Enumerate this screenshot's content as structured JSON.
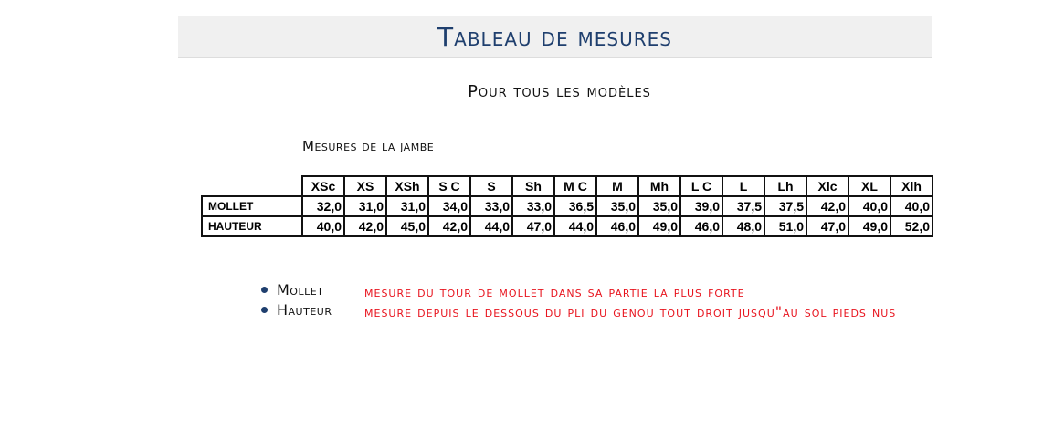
{
  "header": {
    "title": "Tableau de mesures"
  },
  "subtitle": "Pour tous les modèles",
  "section": "Mesures de la jambe",
  "table": {
    "sizes": [
      "XSc",
      "XS",
      "XSh",
      "S C",
      "S",
      "Sh",
      "M C",
      "M",
      "Mh",
      "L C",
      "L",
      "Lh",
      "Xlc",
      "XL",
      "Xlh"
    ],
    "rows": [
      {
        "label": "MOLLET",
        "values": [
          "32,0",
          "31,0",
          "31,0",
          "34,0",
          "33,0",
          "33,0",
          "36,5",
          "35,0",
          "35,0",
          "39,0",
          "37,5",
          "37,5",
          "42,0",
          "40,0",
          "40,0"
        ]
      },
      {
        "label": "HAUTEUR",
        "values": [
          "40,0",
          "42,0",
          "45,0",
          "42,0",
          "44,0",
          "47,0",
          "44,0",
          "46,0",
          "49,0",
          "46,0",
          "48,0",
          "51,0",
          "47,0",
          "49,0",
          "52,0"
        ]
      }
    ]
  },
  "notes": [
    {
      "term": "Mollet",
      "description": "mesure du tour de mollet dans sa partie la plus forte"
    },
    {
      "term": "Hauteur",
      "description": "mesure depuis le dessous du pli du genou tout droit jusqu\"au sol pieds nus"
    }
  ],
  "colors": {
    "title": "#1f3f6e",
    "description": "#e8141e",
    "band": "#f0f0f0"
  }
}
